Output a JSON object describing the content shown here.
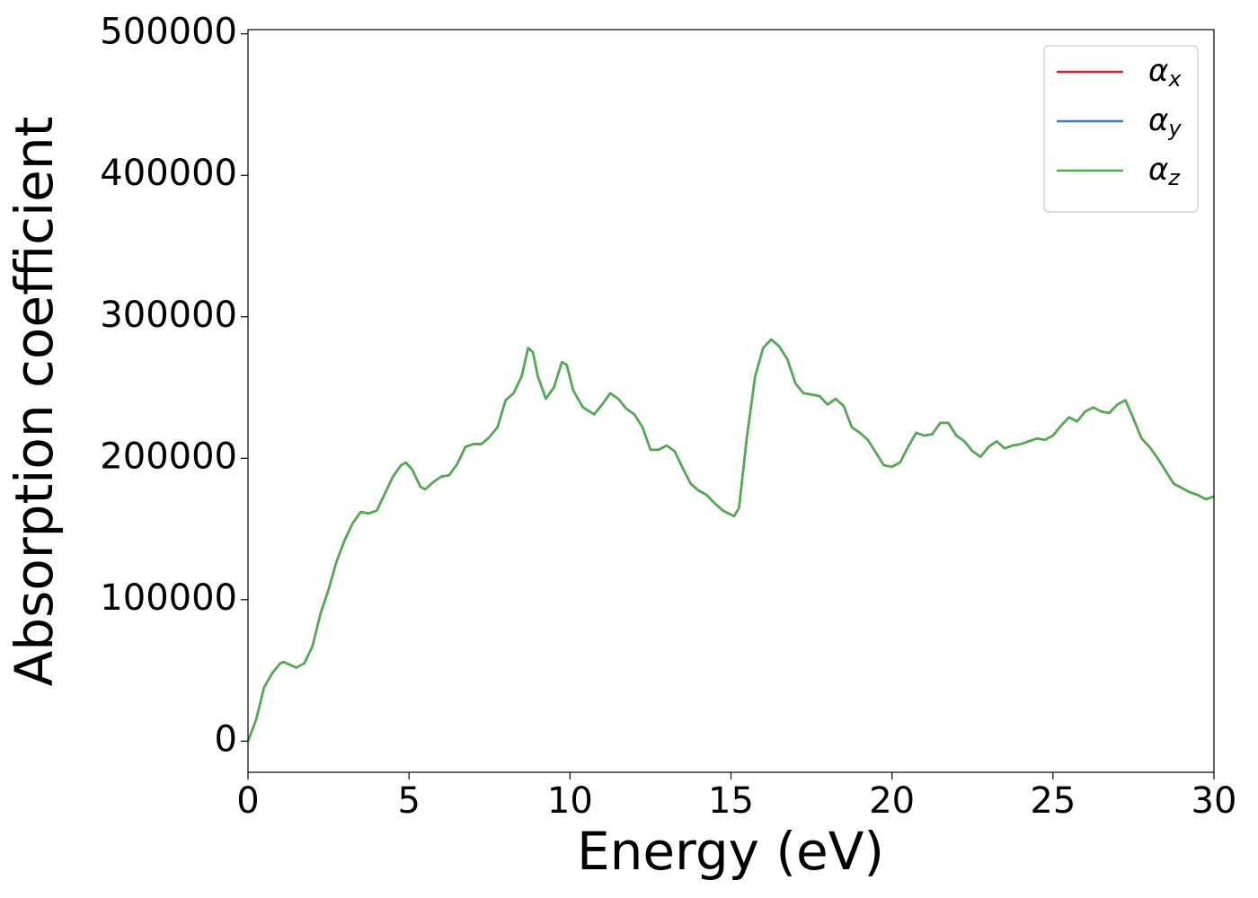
{
  "chart_data": {
    "type": "line",
    "xlabel": "Energy (eV)",
    "ylabel": "Absorption coefficient",
    "xlim": [
      0,
      30
    ],
    "xticks": [
      0,
      5,
      10,
      15,
      20,
      25,
      30
    ],
    "ylim": [
      -22000,
      503000
    ],
    "yticks": [
      0,
      100000,
      200000,
      300000,
      400000,
      500000
    ],
    "legend": "upper right",
    "x": [
      0,
      0.25,
      0.5,
      0.75,
      1.0,
      1.1,
      1.3,
      1.5,
      1.75,
      2.0,
      2.25,
      2.5,
      2.75,
      3.0,
      3.25,
      3.5,
      3.75,
      4.0,
      4.25,
      4.5,
      4.75,
      4.9,
      5.1,
      5.35,
      5.5,
      5.75,
      6.0,
      6.25,
      6.5,
      6.75,
      7.0,
      7.25,
      7.5,
      7.75,
      8.0,
      8.25,
      8.5,
      8.7,
      8.85,
      9.0,
      9.25,
      9.5,
      9.75,
      9.9,
      10.1,
      10.4,
      10.75,
      11.0,
      11.25,
      11.5,
      11.75,
      12.0,
      12.25,
      12.5,
      12.75,
      13.0,
      13.25,
      13.5,
      13.75,
      14.0,
      14.25,
      14.5,
      14.75,
      15.1,
      15.25,
      15.5,
      15.75,
      16.0,
      16.25,
      16.5,
      16.75,
      17.0,
      17.25,
      17.5,
      17.75,
      18.0,
      18.25,
      18.5,
      18.75,
      19.0,
      19.25,
      19.5,
      19.75,
      20.0,
      20.25,
      20.5,
      20.75,
      21.0,
      21.25,
      21.5,
      21.75,
      22.0,
      22.25,
      22.5,
      22.75,
      23.0,
      23.25,
      23.5,
      23.75,
      24.0,
      24.5,
      24.75,
      25.0,
      25.25,
      25.5,
      25.75,
      26.0,
      26.25,
      26.5,
      26.75,
      27.0,
      27.25,
      27.5,
      27.75,
      28.0,
      28.25,
      28.5,
      28.75,
      29.0,
      29.25,
      29.5,
      29.75,
      30.0
    ],
    "series": [
      {
        "name": "α_x",
        "color": "#e41a1c",
        "values": [
          0,
          15000,
          38000,
          48000,
          55000,
          56000,
          54000,
          52000,
          55000,
          67000,
          90000,
          107000,
          127000,
          142000,
          154000,
          162000,
          161000,
          163000,
          175000,
          187000,
          195000,
          197000,
          192000,
          180000,
          178000,
          183000,
          187000,
          188000,
          196000,
          208000,
          210000,
          210000,
          215000,
          222000,
          241000,
          246000,
          258000,
          278000,
          275000,
          258000,
          242000,
          250000,
          268000,
          266000,
          248000,
          236000,
          231000,
          238000,
          246000,
          242000,
          235000,
          231000,
          222000,
          206000,
          206000,
          209000,
          205000,
          193000,
          182000,
          177000,
          174000,
          168000,
          163000,
          159000,
          165000,
          216000,
          258000,
          278000,
          284000,
          279000,
          270000,
          253000,
          246000,
          245000,
          244000,
          238000,
          242000,
          237000,
          222000,
          218000,
          213000,
          204000,
          195000,
          194000,
          197000,
          208000,
          218000,
          216000,
          217000,
          225000,
          225000,
          216000,
          212000,
          205000,
          201000,
          208000,
          212000,
          207000,
          209000,
          210000,
          214000,
          213000,
          216000,
          223000,
          229000,
          226000,
          233000,
          236000,
          233000,
          232000,
          238000,
          241000,
          228000,
          214000,
          208000,
          200000,
          191000,
          182000,
          179000,
          176000,
          174000,
          171000,
          173000
        ]
      },
      {
        "name": "α_y",
        "color": "#377eb8",
        "values": [
          0,
          15000,
          38000,
          48000,
          55000,
          56000,
          54000,
          52000,
          55000,
          67000,
          90000,
          107000,
          127000,
          142000,
          154000,
          162000,
          161000,
          163000,
          175000,
          187000,
          195000,
          197000,
          192000,
          180000,
          178000,
          183000,
          187000,
          188000,
          196000,
          208000,
          210000,
          210000,
          215000,
          222000,
          241000,
          246000,
          258000,
          278000,
          275000,
          258000,
          242000,
          250000,
          268000,
          266000,
          248000,
          236000,
          231000,
          238000,
          246000,
          242000,
          235000,
          231000,
          222000,
          206000,
          206000,
          209000,
          205000,
          193000,
          182000,
          177000,
          174000,
          168000,
          163000,
          159000,
          165000,
          216000,
          258000,
          278000,
          284000,
          279000,
          270000,
          253000,
          246000,
          245000,
          244000,
          238000,
          242000,
          237000,
          222000,
          218000,
          213000,
          204000,
          195000,
          194000,
          197000,
          208000,
          218000,
          216000,
          217000,
          225000,
          225000,
          216000,
          212000,
          205000,
          201000,
          208000,
          212000,
          207000,
          209000,
          210000,
          214000,
          213000,
          216000,
          223000,
          229000,
          226000,
          233000,
          236000,
          233000,
          232000,
          238000,
          241000,
          228000,
          214000,
          208000,
          200000,
          191000,
          182000,
          179000,
          176000,
          174000,
          171000,
          173000
        ]
      },
      {
        "name": "α_z",
        "color": "#4daf4a",
        "values": [
          0,
          15000,
          38000,
          48000,
          55000,
          56000,
          54000,
          52000,
          55000,
          67000,
          90000,
          107000,
          127000,
          142000,
          154000,
          162000,
          161000,
          163000,
          175000,
          187000,
          195000,
          197000,
          192000,
          180000,
          178000,
          183000,
          187000,
          188000,
          196000,
          208000,
          210000,
          210000,
          215000,
          222000,
          241000,
          246000,
          258000,
          278000,
          275000,
          258000,
          242000,
          250000,
          268000,
          266000,
          248000,
          236000,
          231000,
          238000,
          246000,
          242000,
          235000,
          231000,
          222000,
          206000,
          206000,
          209000,
          205000,
          193000,
          182000,
          177000,
          174000,
          168000,
          163000,
          159000,
          165000,
          216000,
          258000,
          278000,
          284000,
          279000,
          270000,
          253000,
          246000,
          245000,
          244000,
          238000,
          242000,
          237000,
          222000,
          218000,
          213000,
          204000,
          195000,
          194000,
          197000,
          208000,
          218000,
          216000,
          217000,
          225000,
          225000,
          216000,
          212000,
          205000,
          201000,
          208000,
          212000,
          207000,
          209000,
          210000,
          214000,
          213000,
          216000,
          223000,
          229000,
          226000,
          233000,
          236000,
          233000,
          232000,
          238000,
          241000,
          228000,
          214000,
          208000,
          200000,
          191000,
          182000,
          179000,
          176000,
          174000,
          171000,
          173000
        ]
      }
    ]
  }
}
